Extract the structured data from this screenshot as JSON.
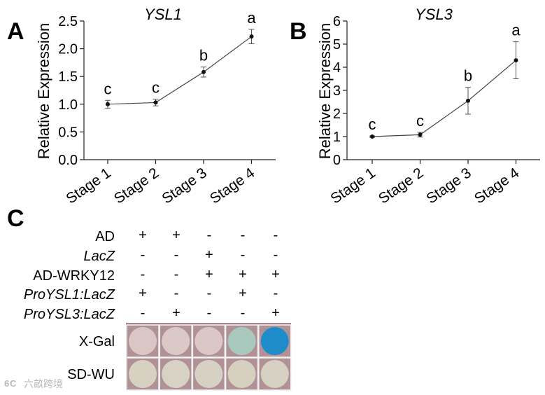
{
  "chart_data": [
    {
      "panel": "A",
      "type": "line",
      "title": "YSL1",
      "ylabel": "Relative Expression",
      "xlabel": "",
      "categories": [
        "Stage 1",
        "Stage 2",
        "Stage 3",
        "Stage 4"
      ],
      "values": [
        1.0,
        1.03,
        1.58,
        2.22
      ],
      "errors": [
        0.07,
        0.06,
        0.09,
        0.13
      ],
      "letters": [
        "c",
        "c",
        "b",
        "a"
      ],
      "ylim": [
        0,
        2.5
      ],
      "yticks": [
        0.0,
        0.5,
        1.0,
        1.5,
        2.0,
        2.5
      ],
      "yticklabels": [
        "0.0",
        "0.5",
        "1.0",
        "1.5",
        "2.0",
        "2.5"
      ]
    },
    {
      "panel": "B",
      "type": "line",
      "title": "YSL3",
      "ylabel": "Relative Expression",
      "xlabel": "",
      "categories": [
        "Stage 1",
        "Stage 2",
        "Stage 3",
        "Stage 4"
      ],
      "values": [
        1.0,
        1.08,
        2.55,
        4.3
      ],
      "errors": [
        0.03,
        0.1,
        0.58,
        0.8
      ],
      "letters": [
        "c",
        "c",
        "b",
        "a"
      ],
      "ylim": [
        0,
        6
      ],
      "yticks": [
        0,
        1,
        2,
        3,
        4,
        5,
        6
      ],
      "yticklabels": [
        "0",
        "1",
        "2",
        "3",
        "4",
        "5",
        "6"
      ]
    }
  ],
  "panel_c": {
    "label": "C",
    "row_labels": [
      "AD",
      "LacZ",
      "AD-WRKY12",
      "ProYSL1:LacZ",
      "ProYSL3:LacZ"
    ],
    "signs": [
      [
        "+",
        "+",
        "-",
        "-",
        "-"
      ],
      [
        "-",
        "-",
        "+",
        "-",
        "-"
      ],
      [
        "-",
        "-",
        "+",
        "+",
        "+"
      ],
      [
        "+",
        "-",
        "-",
        "+",
        "-"
      ],
      [
        "-",
        "+",
        "-",
        "-",
        "+"
      ]
    ],
    "plate_rows": [
      {
        "label": "X-Gal",
        "colors": [
          "#d9c6c5",
          "#dbc9c7",
          "#dac7c6",
          "#a9c9bf",
          "#1d8cc9"
        ]
      },
      {
        "label": "SD-WU",
        "colors": [
          "#d6d1c1",
          "#d8d2c4",
          "#d7d1c3",
          "#d5d0c0",
          "#d6d1c2"
        ]
      }
    ],
    "plate_background": "#a7888c"
  },
  "watermark": {
    "text": "六畝跨境"
  },
  "colors": {
    "line": "#444444",
    "marker": "#111111",
    "axis": "#222222"
  }
}
